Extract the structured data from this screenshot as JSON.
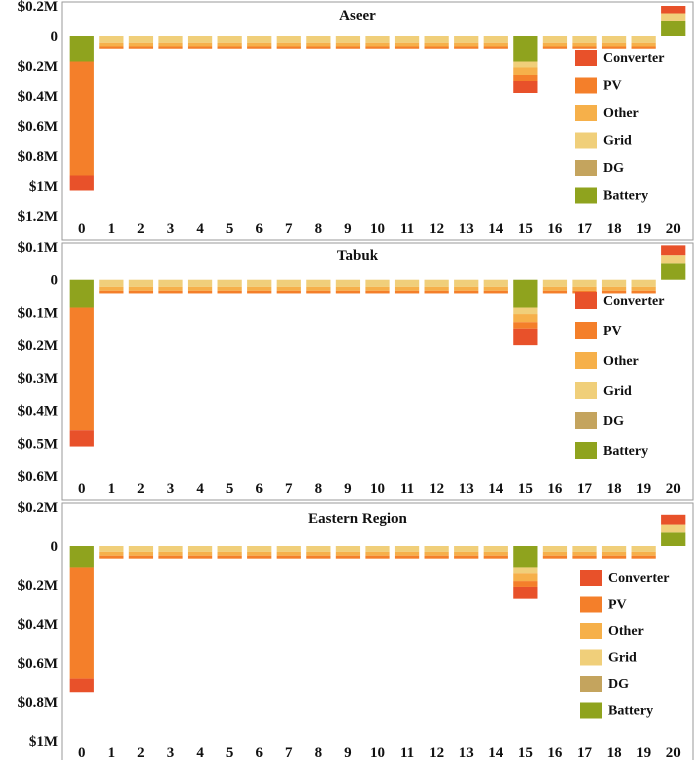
{
  "chart_data": [
    {
      "type": "bar",
      "stacked": true,
      "title": "Aseer",
      "categories": [
        "0",
        "1",
        "2",
        "3",
        "4",
        "5",
        "6",
        "7",
        "8",
        "9",
        "10",
        "11",
        "12",
        "13",
        "14",
        "15",
        "16",
        "17",
        "18",
        "19",
        "20"
      ],
      "y_ticks": [
        {
          "value": 0.2,
          "label": "$0.2M"
        },
        {
          "value": 0,
          "label": "0"
        },
        {
          "value": -0.2,
          "label": "$0.2M"
        },
        {
          "value": -0.4,
          "label": "$0.4M"
        },
        {
          "value": -0.6,
          "label": "$0.6M"
        },
        {
          "value": -0.8,
          "label": "$0.8M"
        },
        {
          "value": -1.0,
          "label": "$1M"
        },
        {
          "value": -1.2,
          "label": "$1.2M"
        }
      ],
      "ylim": [
        -1.2,
        0.2
      ],
      "grid": false,
      "legend": "right",
      "series": [
        {
          "name": "Battery",
          "color": "#8fa31e",
          "values": [
            -0.17,
            0,
            0,
            0,
            0,
            0,
            0,
            0,
            0,
            0,
            0,
            0,
            0,
            0,
            0,
            -0.17,
            0,
            0,
            0,
            0,
            0.1
          ]
        },
        {
          "name": "DG",
          "color": "#c4a45e",
          "values": [
            0,
            0,
            0,
            0,
            0,
            0,
            0,
            0,
            0,
            0,
            0,
            0,
            0,
            0,
            0,
            0,
            0,
            0,
            0,
            0,
            0
          ]
        },
        {
          "name": "Grid",
          "color": "#f0cf7a",
          "values": [
            0,
            -0.045,
            -0.045,
            -0.045,
            -0.045,
            -0.045,
            -0.045,
            -0.045,
            -0.045,
            -0.045,
            -0.045,
            -0.045,
            -0.045,
            -0.045,
            -0.045,
            -0.04,
            -0.045,
            -0.045,
            -0.045,
            -0.045,
            0.05
          ]
        },
        {
          "name": "Other",
          "color": "#f6b04a",
          "values": [
            0,
            -0.025,
            -0.025,
            -0.025,
            -0.025,
            -0.025,
            -0.025,
            -0.025,
            -0.025,
            -0.025,
            -0.025,
            -0.025,
            -0.025,
            -0.025,
            -0.025,
            -0.05,
            -0.025,
            -0.025,
            -0.025,
            -0.025,
            0
          ]
        },
        {
          "name": "PV",
          "color": "#f47f2a",
          "values": [
            -0.76,
            -0.015,
            -0.015,
            -0.015,
            -0.015,
            -0.015,
            -0.015,
            -0.015,
            -0.015,
            -0.015,
            -0.015,
            -0.015,
            -0.015,
            -0.015,
            -0.015,
            -0.04,
            -0.015,
            -0.015,
            -0.015,
            -0.015,
            0
          ]
        },
        {
          "name": "Converter",
          "color": "#e8512a",
          "values": [
            -0.1,
            0,
            0,
            0,
            0,
            0,
            0,
            0,
            0,
            0,
            0,
            0,
            0,
            0,
            0,
            -0.08,
            0,
            0,
            0,
            0,
            0.05
          ]
        }
      ]
    },
    {
      "type": "bar",
      "stacked": true,
      "title": "Tabuk",
      "categories": [
        "0",
        "1",
        "2",
        "3",
        "4",
        "5",
        "6",
        "7",
        "8",
        "9",
        "10",
        "11",
        "12",
        "13",
        "14",
        "15",
        "16",
        "17",
        "18",
        "19",
        "20"
      ],
      "y_ticks": [
        {
          "value": 0.1,
          "label": "$0.1M"
        },
        {
          "value": 0,
          "label": "0"
        },
        {
          "value": -0.1,
          "label": "$0.1M"
        },
        {
          "value": -0.2,
          "label": "$0.2M"
        },
        {
          "value": -0.3,
          "label": "$0.3M"
        },
        {
          "value": -0.4,
          "label": "$0.4M"
        },
        {
          "value": -0.5,
          "label": "$0.5M"
        },
        {
          "value": -0.6,
          "label": "$0.6M"
        }
      ],
      "ylim": [
        -0.6,
        0.1
      ],
      "grid": false,
      "legend": "right",
      "series": [
        {
          "name": "Battery",
          "color": "#8fa31e",
          "values": [
            -0.085,
            0,
            0,
            0,
            0,
            0,
            0,
            0,
            0,
            0,
            0,
            0,
            0,
            0,
            0,
            -0.085,
            0,
            0,
            0,
            0,
            0.05
          ]
        },
        {
          "name": "DG",
          "color": "#c4a45e",
          "values": [
            0,
            0,
            0,
            0,
            0,
            0,
            0,
            0,
            0,
            0,
            0,
            0,
            0,
            0,
            0,
            0,
            0,
            0,
            0,
            0,
            0
          ]
        },
        {
          "name": "Grid",
          "color": "#f0cf7a",
          "values": [
            0,
            -0.022,
            -0.022,
            -0.022,
            -0.022,
            -0.022,
            -0.022,
            -0.022,
            -0.022,
            -0.022,
            -0.022,
            -0.022,
            -0.022,
            -0.022,
            -0.022,
            -0.02,
            -0.022,
            -0.022,
            -0.022,
            -0.022,
            0.025
          ]
        },
        {
          "name": "Other",
          "color": "#f6b04a",
          "values": [
            0,
            -0.012,
            -0.012,
            -0.012,
            -0.012,
            -0.012,
            -0.012,
            -0.012,
            -0.012,
            -0.012,
            -0.012,
            -0.012,
            -0.012,
            -0.012,
            -0.012,
            -0.025,
            -0.012,
            -0.012,
            -0.012,
            -0.012,
            0
          ]
        },
        {
          "name": "PV",
          "color": "#f47f2a",
          "values": [
            -0.375,
            -0.008,
            -0.008,
            -0.008,
            -0.008,
            -0.008,
            -0.008,
            -0.008,
            -0.008,
            -0.008,
            -0.008,
            -0.008,
            -0.008,
            -0.008,
            -0.008,
            -0.02,
            -0.008,
            -0.008,
            -0.008,
            -0.008,
            0
          ]
        },
        {
          "name": "Converter",
          "color": "#e8512a",
          "values": [
            -0.05,
            0,
            0,
            0,
            0,
            0,
            0,
            0,
            0,
            0,
            0,
            0,
            0,
            0,
            0,
            -0.05,
            0,
            0,
            0,
            0,
            0.03
          ]
        }
      ]
    },
    {
      "type": "bar",
      "stacked": true,
      "title": "Eastern Region",
      "categories": [
        "0",
        "1",
        "2",
        "3",
        "4",
        "5",
        "6",
        "7",
        "8",
        "9",
        "10",
        "11",
        "12",
        "13",
        "14",
        "15",
        "16",
        "17",
        "18",
        "19",
        "20"
      ],
      "y_ticks": [
        {
          "value": 0.2,
          "label": "$0.2M"
        },
        {
          "value": 0,
          "label": "0"
        },
        {
          "value": -0.2,
          "label": "$0.2M"
        },
        {
          "value": -0.4,
          "label": "$0.4M"
        },
        {
          "value": -0.6,
          "label": "$0.6M"
        },
        {
          "value": -0.8,
          "label": "$0.8M"
        },
        {
          "value": -1.0,
          "label": "$1M"
        }
      ],
      "ylim": [
        -1.0,
        0.2
      ],
      "grid": false,
      "legend": "right",
      "series": [
        {
          "name": "Battery",
          "color": "#8fa31e",
          "values": [
            -0.11,
            0,
            0,
            0,
            0,
            0,
            0,
            0,
            0,
            0,
            0,
            0,
            0,
            0,
            0,
            -0.11,
            0,
            0,
            0,
            0,
            0.07
          ]
        },
        {
          "name": "DG",
          "color": "#c4a45e",
          "values": [
            0,
            0,
            0,
            0,
            0,
            0,
            0,
            0,
            0,
            0,
            0,
            0,
            0,
            0,
            0,
            0,
            0,
            0,
            0,
            0,
            0
          ]
        },
        {
          "name": "Grid",
          "color": "#f0cf7a",
          "values": [
            0,
            -0.03,
            -0.03,
            -0.03,
            -0.03,
            -0.03,
            -0.03,
            -0.03,
            -0.03,
            -0.03,
            -0.03,
            -0.03,
            -0.03,
            -0.03,
            -0.03,
            -0.03,
            -0.03,
            -0.03,
            -0.03,
            -0.03,
            0.04
          ]
        },
        {
          "name": "Other",
          "color": "#f6b04a",
          "values": [
            0,
            -0.02,
            -0.02,
            -0.02,
            -0.02,
            -0.02,
            -0.02,
            -0.02,
            -0.02,
            -0.02,
            -0.02,
            -0.02,
            -0.02,
            -0.02,
            -0.02,
            -0.04,
            -0.02,
            -0.02,
            -0.02,
            -0.02,
            0
          ]
        },
        {
          "name": "PV",
          "color": "#f47f2a",
          "values": [
            -0.57,
            -0.015,
            -0.015,
            -0.015,
            -0.015,
            -0.015,
            -0.015,
            -0.015,
            -0.015,
            -0.015,
            -0.015,
            -0.015,
            -0.015,
            -0.015,
            -0.015,
            -0.03,
            -0.015,
            -0.015,
            -0.015,
            -0.015,
            0
          ]
        },
        {
          "name": "Converter",
          "color": "#e8512a",
          "values": [
            -0.07,
            0,
            0,
            0,
            0,
            0,
            0,
            0,
            0,
            0,
            0,
            0,
            0,
            0,
            0,
            -0.06,
            0,
            0,
            0,
            0,
            0.05
          ]
        }
      ]
    }
  ]
}
